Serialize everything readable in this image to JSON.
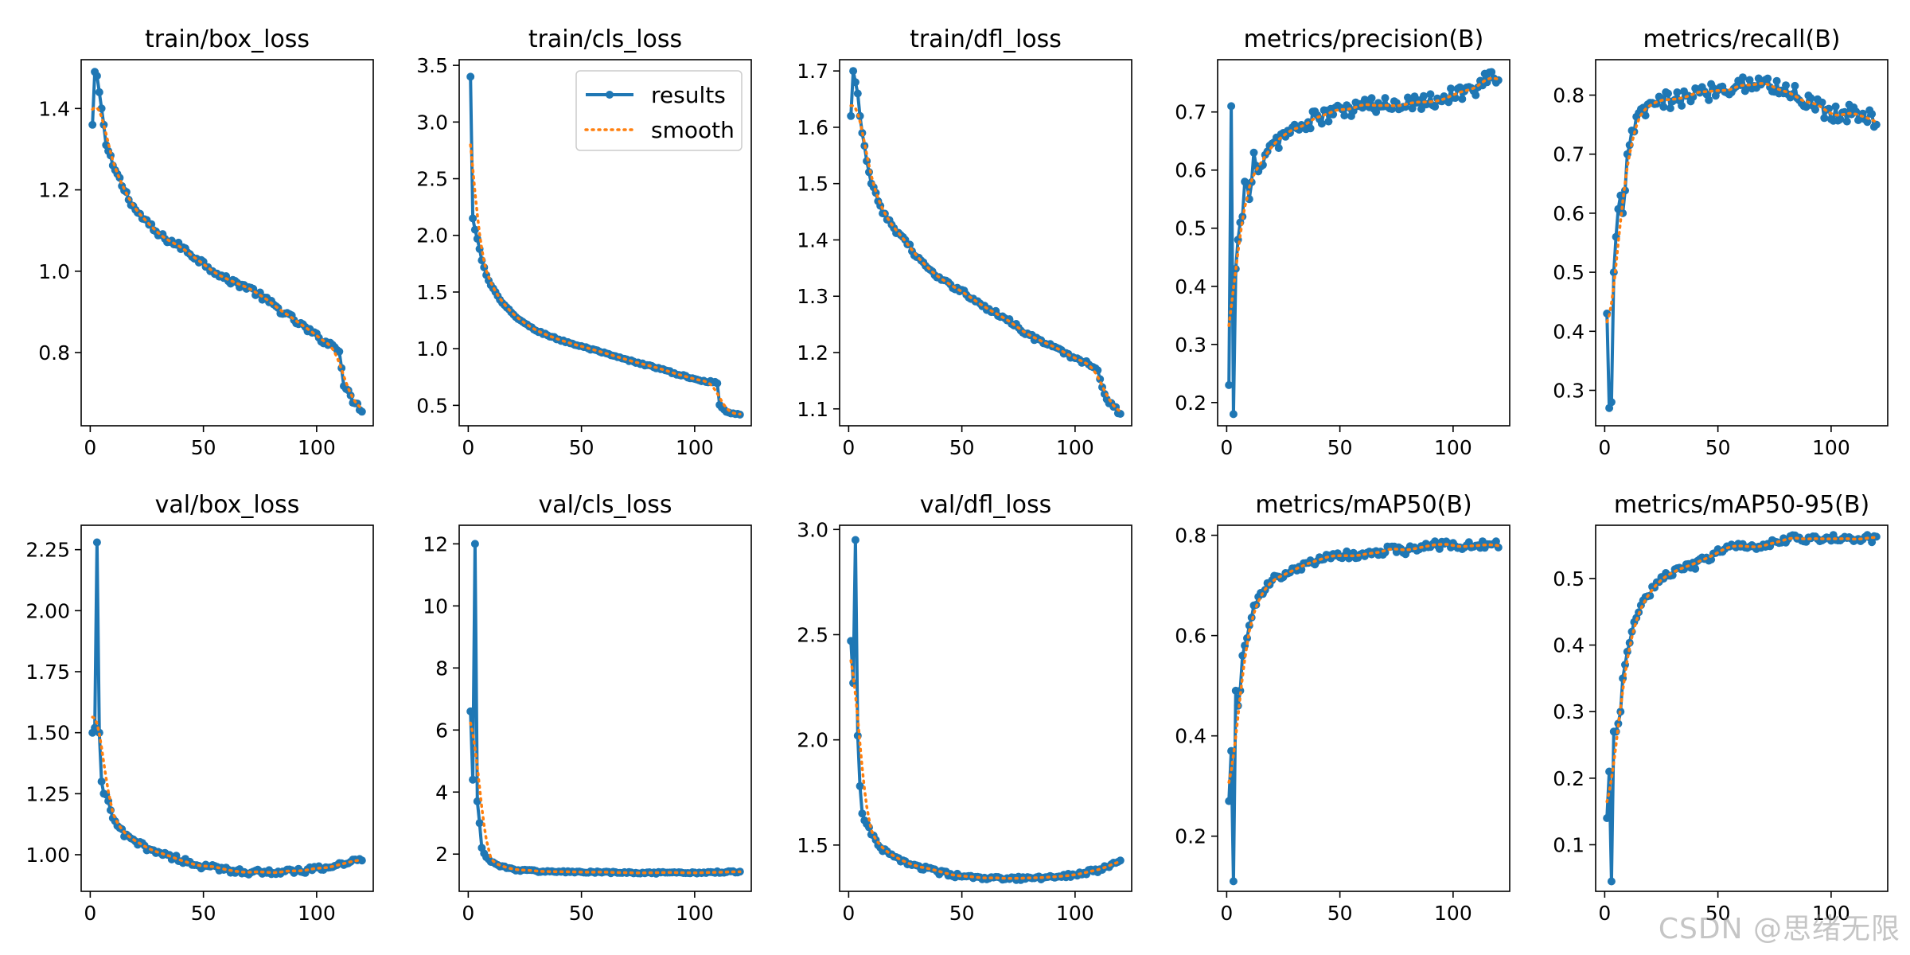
{
  "colors": {
    "results": "#1f77b4",
    "smooth": "#ff7f0e",
    "axes": "#000000"
  },
  "legend": {
    "placement": "top-right",
    "panel": 1,
    "results_label": "results",
    "smooth_label": "smooth"
  },
  "watermark": "CSDN @思绪无限",
  "chart_data": [
    {
      "type": "line",
      "title": "train/box_loss",
      "xlim": [
        -4,
        125
      ],
      "ylim": [
        0.62,
        1.52
      ],
      "xticks": [
        0,
        50,
        100
      ],
      "yticks": [
        0.8,
        1.0,
        1.2,
        1.4
      ],
      "ytick_labels": [
        "0.8",
        "1.0",
        "1.2",
        "1.4"
      ],
      "anchors": [
        [
          1,
          1.36
        ],
        [
          2,
          1.49
        ],
        [
          3,
          1.48
        ],
        [
          4,
          1.44
        ],
        [
          5,
          1.4
        ],
        [
          6,
          1.36
        ],
        [
          7,
          1.31
        ],
        [
          10,
          1.26
        ],
        [
          15,
          1.2
        ],
        [
          20,
          1.15
        ],
        [
          25,
          1.12
        ],
        [
          30,
          1.09
        ],
        [
          40,
          1.06
        ],
        [
          50,
          1.02
        ],
        [
          60,
          0.98
        ],
        [
          70,
          0.96
        ],
        [
          80,
          0.92
        ],
        [
          90,
          0.88
        ],
        [
          100,
          0.84
        ],
        [
          106,
          0.82
        ],
        [
          110,
          0.81
        ],
        [
          112,
          0.72
        ],
        [
          115,
          0.69
        ],
        [
          118,
          0.67
        ],
        [
          120,
          0.66
        ]
      ],
      "noise": 0.008
    },
    {
      "type": "line",
      "title": "train/cls_loss",
      "xlim": [
        -4,
        125
      ],
      "ylim": [
        0.32,
        3.55
      ],
      "xticks": [
        0,
        50,
        100
      ],
      "yticks": [
        0.5,
        1.0,
        1.5,
        2.0,
        2.5,
        3.0,
        3.5
      ],
      "ytick_labels": [
        "0.5",
        "1.0",
        "1.5",
        "2.0",
        "2.5",
        "3.0",
        "3.5"
      ],
      "anchors": [
        [
          1,
          3.4
        ],
        [
          2,
          2.15
        ],
        [
          3,
          2.05
        ],
        [
          4,
          1.97
        ],
        [
          5,
          1.88
        ],
        [
          6,
          1.78
        ],
        [
          8,
          1.65
        ],
        [
          10,
          1.56
        ],
        [
          15,
          1.4
        ],
        [
          20,
          1.3
        ],
        [
          25,
          1.22
        ],
        [
          30,
          1.16
        ],
        [
          40,
          1.08
        ],
        [
          50,
          1.02
        ],
        [
          60,
          0.96
        ],
        [
          70,
          0.9
        ],
        [
          80,
          0.85
        ],
        [
          90,
          0.79
        ],
        [
          100,
          0.73
        ],
        [
          106,
          0.71
        ],
        [
          110,
          0.7
        ],
        [
          111,
          0.5
        ],
        [
          114,
          0.45
        ],
        [
          117,
          0.43
        ],
        [
          120,
          0.42
        ]
      ],
      "noise": 0.008
    },
    {
      "type": "line",
      "title": "train/dfl_loss",
      "xlim": [
        -4,
        125
      ],
      "ylim": [
        1.07,
        1.72
      ],
      "xticks": [
        0,
        50,
        100
      ],
      "yticks": [
        1.1,
        1.2,
        1.3,
        1.4,
        1.5,
        1.6,
        1.7
      ],
      "ytick_labels": [
        "1.1",
        "1.2",
        "1.3",
        "1.4",
        "1.5",
        "1.6",
        "1.7"
      ],
      "anchors": [
        [
          1,
          1.62
        ],
        [
          2,
          1.7
        ],
        [
          3,
          1.68
        ],
        [
          4,
          1.66
        ],
        [
          5,
          1.62
        ],
        [
          6,
          1.59
        ],
        [
          8,
          1.54
        ],
        [
          10,
          1.5
        ],
        [
          15,
          1.45
        ],
        [
          20,
          1.42
        ],
        [
          25,
          1.4
        ],
        [
          30,
          1.37
        ],
        [
          40,
          1.33
        ],
        [
          50,
          1.31
        ],
        [
          60,
          1.28
        ],
        [
          70,
          1.26
        ],
        [
          80,
          1.23
        ],
        [
          90,
          1.21
        ],
        [
          100,
          1.19
        ],
        [
          106,
          1.18
        ],
        [
          110,
          1.17
        ],
        [
          112,
          1.14
        ],
        [
          115,
          1.11
        ],
        [
          118,
          1.1
        ],
        [
          120,
          1.09
        ]
      ],
      "noise": 0.004
    },
    {
      "type": "line",
      "title": "metrics/precision(B)",
      "xlim": [
        -4,
        125
      ],
      "ylim": [
        0.16,
        0.79
      ],
      "xticks": [
        0,
        50,
        100
      ],
      "yticks": [
        0.2,
        0.3,
        0.4,
        0.5,
        0.6,
        0.7
      ],
      "ytick_labels": [
        "0.2",
        "0.3",
        "0.4",
        "0.5",
        "0.6",
        "0.7"
      ],
      "anchors": [
        [
          1,
          0.23
        ],
        [
          2,
          0.71
        ],
        [
          3,
          0.18
        ],
        [
          4,
          0.43
        ],
        [
          5,
          0.48
        ],
        [
          7,
          0.52
        ],
        [
          8,
          0.58
        ],
        [
          10,
          0.55
        ],
        [
          12,
          0.63
        ],
        [
          15,
          0.6
        ],
        [
          20,
          0.64
        ],
        [
          25,
          0.66
        ],
        [
          30,
          0.67
        ],
        [
          35,
          0.68
        ],
        [
          40,
          0.69
        ],
        [
          50,
          0.7
        ],
        [
          60,
          0.71
        ],
        [
          70,
          0.71
        ],
        [
          80,
          0.72
        ],
        [
          90,
          0.72
        ],
        [
          100,
          0.73
        ],
        [
          110,
          0.74
        ],
        [
          115,
          0.76
        ],
        [
          120,
          0.75
        ]
      ],
      "noise": 0.015
    },
    {
      "type": "line",
      "title": "metrics/recall(B)",
      "xlim": [
        -4,
        125
      ],
      "ylim": [
        0.24,
        0.86
      ],
      "xticks": [
        0,
        50,
        100
      ],
      "yticks": [
        0.3,
        0.4,
        0.5,
        0.6,
        0.7,
        0.8
      ],
      "ytick_labels": [
        "0.3",
        "0.4",
        "0.5",
        "0.6",
        "0.7",
        "0.8"
      ],
      "anchors": [
        [
          1,
          0.43
        ],
        [
          2,
          0.27
        ],
        [
          3,
          0.28
        ],
        [
          4,
          0.5
        ],
        [
          5,
          0.56
        ],
        [
          7,
          0.63
        ],
        [
          8,
          0.6
        ],
        [
          10,
          0.7
        ],
        [
          12,
          0.74
        ],
        [
          15,
          0.76
        ],
        [
          20,
          0.78
        ],
        [
          25,
          0.79
        ],
        [
          30,
          0.79
        ],
        [
          40,
          0.8
        ],
        [
          50,
          0.81
        ],
        [
          60,
          0.82
        ],
        [
          70,
          0.82
        ],
        [
          80,
          0.81
        ],
        [
          90,
          0.79
        ],
        [
          100,
          0.77
        ],
        [
          110,
          0.77
        ],
        [
          120,
          0.76
        ]
      ],
      "noise": 0.015
    },
    {
      "type": "line",
      "title": "val/box_loss",
      "xlim": [
        -4,
        125
      ],
      "ylim": [
        0.85,
        2.35
      ],
      "xticks": [
        0,
        50,
        100
      ],
      "yticks": [
        1.0,
        1.25,
        1.5,
        1.75,
        2.0,
        2.25
      ],
      "ytick_labels": [
        "1.00",
        "1.25",
        "1.50",
        "1.75",
        "2.00",
        "2.25"
      ],
      "anchors": [
        [
          1,
          1.5
        ],
        [
          2,
          1.52
        ],
        [
          3,
          2.28
        ],
        [
          4,
          1.5
        ],
        [
          5,
          1.3
        ],
        [
          6,
          1.25
        ],
        [
          8,
          1.22
        ],
        [
          10,
          1.15
        ],
        [
          15,
          1.08
        ],
        [
          20,
          1.05
        ],
        [
          25,
          1.03
        ],
        [
          30,
          1.01
        ],
        [
          40,
          0.98
        ],
        [
          50,
          0.95
        ],
        [
          60,
          0.94
        ],
        [
          70,
          0.93
        ],
        [
          80,
          0.93
        ],
        [
          90,
          0.93
        ],
        [
          100,
          0.94
        ],
        [
          110,
          0.96
        ],
        [
          120,
          0.98
        ]
      ],
      "noise": 0.012
    },
    {
      "type": "line",
      "title": "val/cls_loss",
      "xlim": [
        -4,
        125
      ],
      "ylim": [
        0.8,
        12.6
      ],
      "xticks": [
        0,
        50,
        100
      ],
      "yticks": [
        2,
        4,
        6,
        8,
        10,
        12
      ],
      "ytick_labels": [
        "2",
        "4",
        "6",
        "8",
        "10",
        "12"
      ],
      "anchors": [
        [
          1,
          6.6
        ],
        [
          2,
          4.4
        ],
        [
          3,
          12.0
        ],
        [
          4,
          3.7
        ],
        [
          5,
          3.0
        ],
        [
          6,
          2.2
        ],
        [
          8,
          1.9
        ],
        [
          10,
          1.75
        ],
        [
          15,
          1.6
        ],
        [
          20,
          1.5
        ],
        [
          30,
          1.45
        ],
        [
          40,
          1.43
        ],
        [
          50,
          1.42
        ],
        [
          60,
          1.41
        ],
        [
          70,
          1.4
        ],
        [
          80,
          1.39
        ],
        [
          90,
          1.39
        ],
        [
          100,
          1.4
        ],
        [
          110,
          1.42
        ],
        [
          120,
          1.43
        ]
      ],
      "noise": 0.03
    },
    {
      "type": "line",
      "title": "val/dfl_loss",
      "xlim": [
        -4,
        125
      ],
      "ylim": [
        1.28,
        3.02
      ],
      "xticks": [
        0,
        50,
        100
      ],
      "yticks": [
        1.5,
        2.0,
        2.5,
        3.0
      ],
      "ytick_labels": [
        "1.5",
        "2.0",
        "2.5",
        "3.0"
      ],
      "anchors": [
        [
          1,
          2.47
        ],
        [
          2,
          2.27
        ],
        [
          3,
          2.95
        ],
        [
          4,
          2.02
        ],
        [
          5,
          1.78
        ],
        [
          6,
          1.65
        ],
        [
          8,
          1.6
        ],
        [
          10,
          1.55
        ],
        [
          15,
          1.48
        ],
        [
          20,
          1.44
        ],
        [
          25,
          1.42
        ],
        [
          30,
          1.4
        ],
        [
          40,
          1.37
        ],
        [
          50,
          1.35
        ],
        [
          60,
          1.34
        ],
        [
          70,
          1.34
        ],
        [
          80,
          1.34
        ],
        [
          90,
          1.35
        ],
        [
          100,
          1.36
        ],
        [
          110,
          1.38
        ],
        [
          120,
          1.42
        ]
      ],
      "noise": 0.01
    },
    {
      "type": "line",
      "title": "metrics/mAP50(B)",
      "xlim": [
        -4,
        125
      ],
      "ylim": [
        0.09,
        0.82
      ],
      "xticks": [
        0,
        50,
        100
      ],
      "yticks": [
        0.2,
        0.4,
        0.6,
        0.8
      ],
      "ytick_labels": [
        "0.2",
        "0.4",
        "0.6",
        "0.8"
      ],
      "anchors": [
        [
          1,
          0.27
        ],
        [
          2,
          0.37
        ],
        [
          3,
          0.11
        ],
        [
          4,
          0.49
        ],
        [
          5,
          0.46
        ],
        [
          6,
          0.49
        ],
        [
          7,
          0.56
        ],
        [
          8,
          0.58
        ],
        [
          10,
          0.62
        ],
        [
          12,
          0.66
        ],
        [
          15,
          0.68
        ],
        [
          20,
          0.71
        ],
        [
          25,
          0.72
        ],
        [
          30,
          0.73
        ],
        [
          40,
          0.75
        ],
        [
          50,
          0.76
        ],
        [
          60,
          0.76
        ],
        [
          70,
          0.77
        ],
        [
          80,
          0.77
        ],
        [
          90,
          0.78
        ],
        [
          100,
          0.78
        ],
        [
          110,
          0.78
        ],
        [
          120,
          0.78
        ]
      ],
      "noise": 0.008
    },
    {
      "type": "line",
      "title": "metrics/mAP50-95(B)",
      "xlim": [
        -4,
        125
      ],
      "ylim": [
        0.03,
        0.58
      ],
      "xticks": [
        0,
        50,
        100
      ],
      "yticks": [
        0.1,
        0.2,
        0.3,
        0.4,
        0.5
      ],
      "ytick_labels": [
        "0.1",
        "0.2",
        "0.3",
        "0.4",
        "0.5"
      ],
      "anchors": [
        [
          1,
          0.14
        ],
        [
          2,
          0.21
        ],
        [
          3,
          0.045
        ],
        [
          4,
          0.27
        ],
        [
          5,
          0.27
        ],
        [
          7,
          0.3
        ],
        [
          8,
          0.35
        ],
        [
          10,
          0.39
        ],
        [
          12,
          0.42
        ],
        [
          15,
          0.45
        ],
        [
          20,
          0.48
        ],
        [
          25,
          0.5
        ],
        [
          30,
          0.51
        ],
        [
          40,
          0.52
        ],
        [
          50,
          0.54
        ],
        [
          60,
          0.55
        ],
        [
          70,
          0.55
        ],
        [
          80,
          0.56
        ],
        [
          90,
          0.56
        ],
        [
          100,
          0.56
        ],
        [
          110,
          0.56
        ],
        [
          120,
          0.56
        ]
      ],
      "noise": 0.006
    }
  ]
}
